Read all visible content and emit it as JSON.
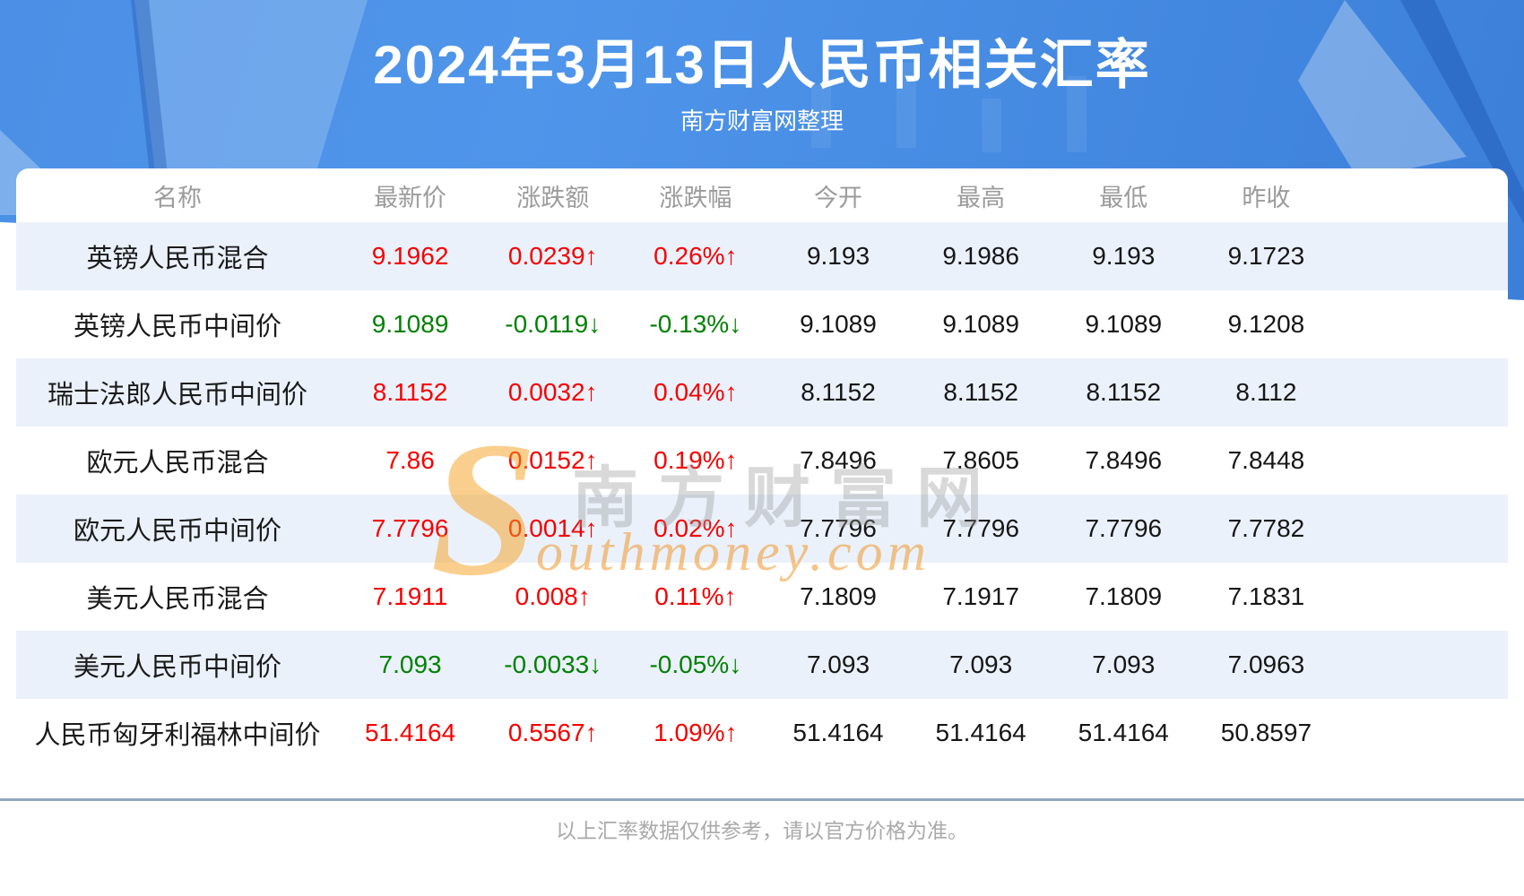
{
  "banner": {
    "subtitle": "南方财富网整理"
  },
  "watermark": {
    "initial": "S",
    "cn": "南方财富网",
    "en": "outhmoney.com"
  },
  "icons": {
    "up_arrow": "↑",
    "down_arrow": "↓"
  },
  "colors": {
    "up": "#f50000",
    "down": "#008000",
    "stripe": "#eaf1fb",
    "header_text": "#9b9b9b",
    "divider": "#90a5bf",
    "footer_text": "#a9a9a9",
    "banner1": "#4b90e6",
    "banner2": "#3b7fd9"
  },
  "footer": {
    "note": "以上汇率数据仅供参考，请以官方价格为准。"
  },
  "chart_data": {
    "type": "table",
    "title": "2024年3月13日人民币相关汇率",
    "columns": [
      "名称",
      "最新价",
      "涨跌额",
      "涨跌幅",
      "今开",
      "最高",
      "最低",
      "昨收"
    ],
    "rows": [
      {
        "name": "英镑人民币混合",
        "last": "9.1962",
        "change": "0.0239",
        "change_pct": "0.26%",
        "direction": "up",
        "open": "9.193",
        "high": "9.1986",
        "low": "9.193",
        "prev_close": "9.1723"
      },
      {
        "name": "英镑人民币中间价",
        "last": "9.1089",
        "change": "-0.0119",
        "change_pct": "-0.13%",
        "direction": "down",
        "open": "9.1089",
        "high": "9.1089",
        "low": "9.1089",
        "prev_close": "9.1208"
      },
      {
        "name": "瑞士法郎人民币中间价",
        "last": "8.1152",
        "change": "0.0032",
        "change_pct": "0.04%",
        "direction": "up",
        "open": "8.1152",
        "high": "8.1152",
        "low": "8.1152",
        "prev_close": "8.112"
      },
      {
        "name": "欧元人民币混合",
        "last": "7.86",
        "change": "0.0152",
        "change_pct": "0.19%",
        "direction": "up",
        "open": "7.8496",
        "high": "7.8605",
        "low": "7.8496",
        "prev_close": "7.8448"
      },
      {
        "name": "欧元人民币中间价",
        "last": "7.7796",
        "change": "0.0014",
        "change_pct": "0.02%",
        "direction": "up",
        "open": "7.7796",
        "high": "7.7796",
        "low": "7.7796",
        "prev_close": "7.7782"
      },
      {
        "name": "美元人民币混合",
        "last": "7.1911",
        "change": "0.008",
        "change_pct": "0.11%",
        "direction": "up",
        "open": "7.1809",
        "high": "7.1917",
        "low": "7.1809",
        "prev_close": "7.1831"
      },
      {
        "name": "美元人民币中间价",
        "last": "7.093",
        "change": "-0.0033",
        "change_pct": "-0.05%",
        "direction": "down",
        "open": "7.093",
        "high": "7.093",
        "low": "7.093",
        "prev_close": "7.0963"
      },
      {
        "name": "人民币匈牙利福林中间价",
        "last": "51.4164",
        "change": "0.5567",
        "change_pct": "1.09%",
        "direction": "up",
        "open": "51.4164",
        "high": "51.4164",
        "low": "51.4164",
        "prev_close": "50.8597"
      }
    ]
  }
}
